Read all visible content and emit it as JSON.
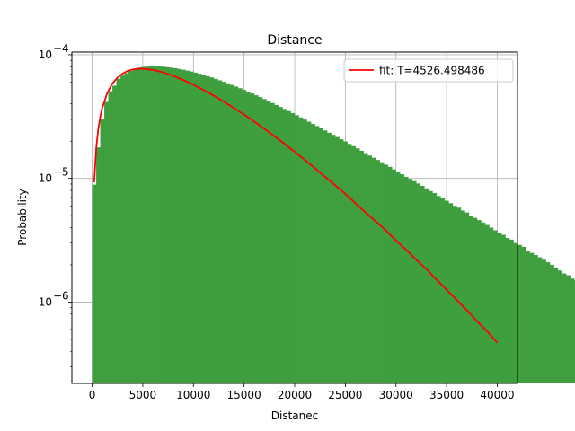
{
  "chart_data": {
    "type": "bar",
    "title": "Distance",
    "xlabel": "Distanec",
    "ylabel": "Probability",
    "xlim": [
      -2000,
      42000
    ],
    "ylim": [
      2.2e-07,
      0.000105
    ],
    "yscale": "log",
    "grid": true,
    "legend_position": "top-right",
    "xticks": [
      0,
      5000,
      10000,
      15000,
      20000,
      25000,
      30000,
      35000,
      40000
    ],
    "xtick_labels": [
      "0",
      "5000",
      "10000",
      "15000",
      "20000",
      "25000",
      "30000",
      "35000",
      "40000"
    ],
    "yticks": [
      {
        "value": 1e-06,
        "base": "10",
        "exp": "−6"
      },
      {
        "value": 1e-05,
        "base": "10",
        "exp": "−5"
      },
      {
        "value": 0.0001,
        "base": "10",
        "exp": "−4"
      }
    ],
    "histogram": {
      "bin_start": 0,
      "bin_width": 400,
      "color": "#3f9f3f",
      "values": [
        8.9e-06,
        1.78e-05,
        3e-05,
        4.16e-05,
        5.07e-05,
        5.62e-05,
        6.39e-05,
        6.78e-05,
        7.09e-05,
        7.4e-05,
        7.71e-05,
        7.87e-05,
        7.96e-05,
        8.02e-05,
        8.05e-05,
        8.05e-05,
        8.03e-05,
        8e-05,
        7.94e-05,
        7.87e-05,
        7.78e-05,
        7.68e-05,
        7.57e-05,
        7.44e-05,
        7.31e-05,
        7.17e-05,
        7.02e-05,
        6.87e-05,
        6.71e-05,
        6.55e-05,
        6.38e-05,
        6.21e-05,
        6.04e-05,
        5.87e-05,
        5.7e-05,
        5.53e-05,
        5.36e-05,
        5.19e-05,
        5.02e-05,
        4.86e-05,
        4.7e-05,
        4.54e-05,
        4.38e-05,
        4.22e-05,
        4.07e-05,
        3.92e-05,
        3.78e-05,
        3.64e-05,
        3.5e-05,
        3.37e-05,
        3.24e-05,
        3.11e-05,
        2.99e-05,
        2.87e-05,
        2.76e-05,
        2.65e-05,
        2.54e-05,
        2.44e-05,
        2.34e-05,
        2.25e-05,
        2.16e-05,
        2.07e-05,
        1.99e-05,
        1.9e-05,
        1.82e-05,
        1.75e-05,
        1.67e-05,
        1.6e-05,
        1.53e-05,
        1.47e-05,
        1.41e-05,
        1.35e-05,
        1.29e-05,
        1.24e-05,
        1.18e-05,
        1.13e-05,
        1.08e-05,
        1.03e-05,
        9.9e-06,
        9.5e-06,
        9.1e-06,
        8.7e-06,
        8.3e-06,
        7.9e-06,
        7.6e-06,
        7.2e-06,
        6.9e-06,
        6.6e-06,
        6.3e-06,
        6e-06,
        5.8e-06,
        5.5e-06,
        5.3e-06,
        5e-06,
        4.8e-06,
        4.6e-06,
        4.4e-06,
        4.2e-06,
        4e-06,
        3.8e-06,
        3.6e-06,
        3.5e-06,
        3.3e-06,
        3.2e-06,
        3e-06,
        2.9e-06,
        2.8e-06,
        2.6e-06,
        2.5e-06,
        2.4e-06,
        2.3e-06,
        2.2e-06,
        2.1e-06,
        2e-06,
        1.9e-06,
        1.8e-06,
        1.7e-06,
        1.65e-06,
        1.55e-06,
        1.5e-06,
        1.4e-06,
        1.35e-06,
        1.3e-06,
        1.25e-06,
        1.2e-06,
        1.15e-06,
        1.1e-06,
        1.05e-06,
        1e-06,
        9.5e-07,
        9e-07,
        8.5e-07,
        8e-07,
        7.7e-07,
        7.3e-07,
        7e-07,
        6.6e-07,
        6.3e-07,
        6e-07,
        5.7e-07
      ]
    },
    "fit": {
      "name": "fit: T=4526.498486",
      "color": "#ff0000",
      "x": [
        200,
        400,
        600,
        800,
        1000,
        1500,
        2000,
        2500,
        3000,
        3500,
        4000,
        4526.5,
        5000,
        6000,
        7000,
        8000,
        9000,
        10000,
        11000,
        12000,
        13000,
        14000,
        15000,
        16000,
        17000,
        18000,
        19000,
        20000,
        21000,
        22000,
        23000,
        24000,
        25000,
        26000,
        27000,
        28000,
        29000,
        30000,
        31000,
        32000,
        33000,
        34000,
        35000,
        36000,
        37000,
        38000,
        39000,
        40000
      ],
      "y": [
        9.3e-06,
        1.74e-05,
        2.48e-05,
        3.14e-05,
        3.72e-05,
        4.92e-05,
        5.84e-05,
        6.53e-05,
        7.03e-05,
        7.38e-05,
        7.6e-05,
        7.7e-05,
        7.7e-05,
        7.54e-05,
        7.2e-05,
        6.75e-05,
        6.24e-05,
        5.72e-05,
        5.18e-05,
        4.67e-05,
        4.17e-05,
        3.71e-05,
        3.28e-05,
        2.88e-05,
        2.52e-05,
        2.19e-05,
        1.9e-05,
        1.64e-05,
        1.41e-05,
        1.21e-05,
        1.03e-05,
        8.8e-06,
        7.5e-06,
        6.3e-06,
        5.3e-06,
        4.5e-06,
        3.8e-06,
        3.15e-06,
        2.65e-06,
        2.2e-06,
        1.85e-06,
        1.52e-06,
        1.26e-06,
        1.04e-06,
        8.6e-07,
        7e-07,
        5.8e-07,
        4.7e-07
      ]
    }
  }
}
